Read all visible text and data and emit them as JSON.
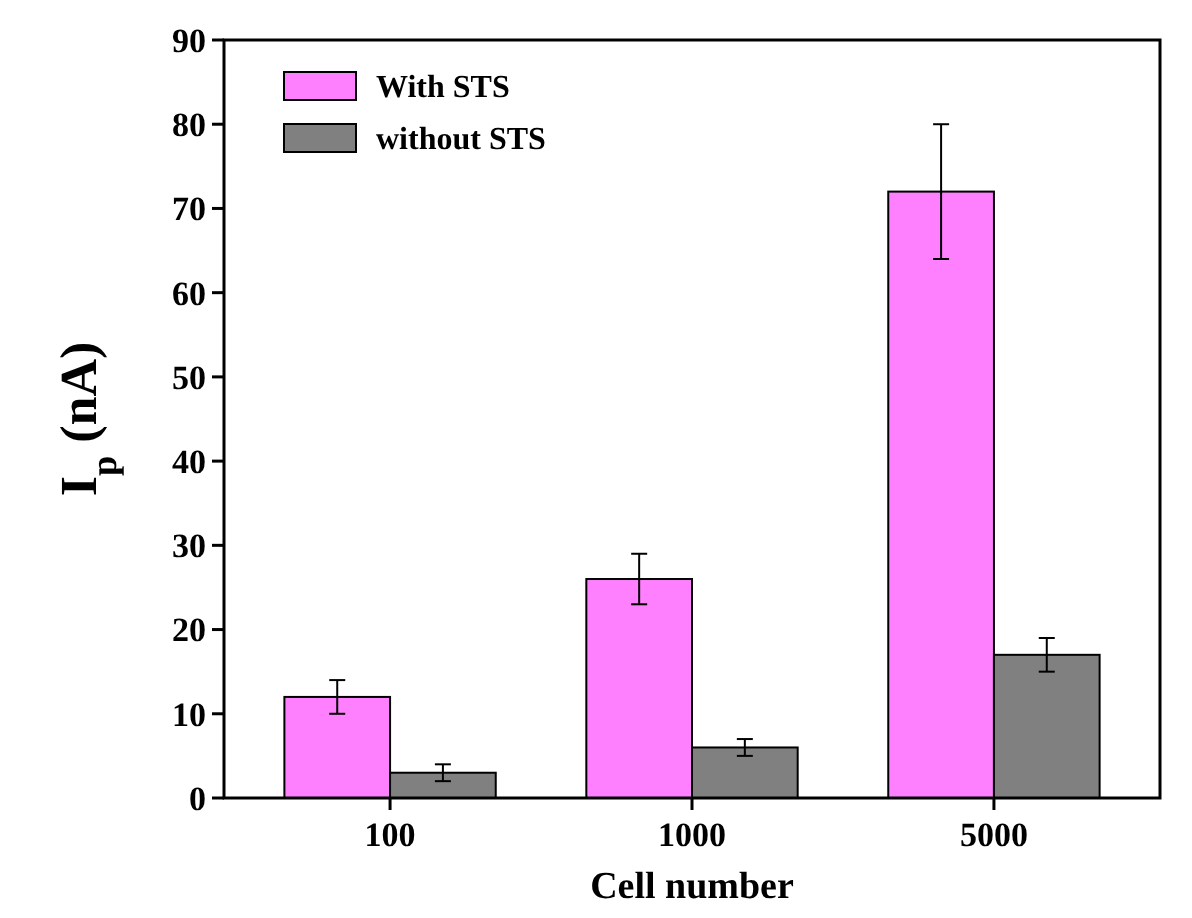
{
  "chart_data": {
    "type": "bar",
    "xlabel": "Cell number",
    "ylabel": "I$_{p}$ (nA)",
    "categories": [
      "100",
      "1000",
      "5000"
    ],
    "series": [
      {
        "name": "With STS",
        "color": "#ff80ff",
        "values": [
          12,
          26,
          72
        ],
        "errors": [
          2,
          3,
          8
        ]
      },
      {
        "name": "without STS",
        "color": "#808080",
        "values": [
          3,
          6,
          17
        ],
        "errors": [
          1,
          1,
          2
        ]
      }
    ],
    "ylim": [
      0,
      90
    ],
    "yticks": [
      0,
      10,
      20,
      30,
      40,
      50,
      60,
      70,
      80,
      90
    ],
    "legend": "top left",
    "grid": false
  }
}
